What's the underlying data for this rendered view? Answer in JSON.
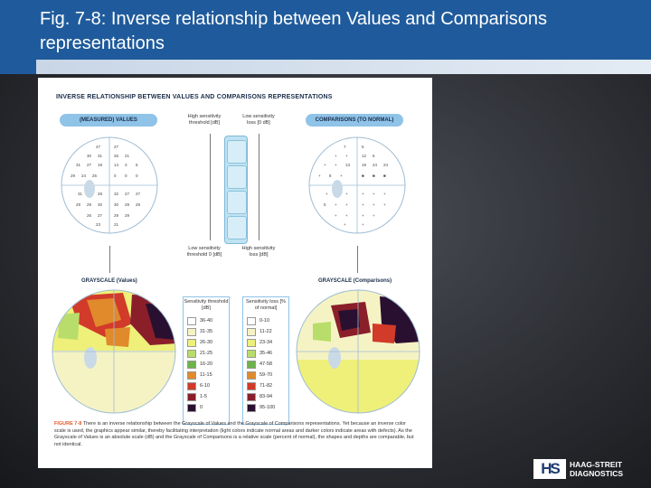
{
  "slide": {
    "title": "Fig. 7-8: Inverse relationship between Values and Comparisons representations"
  },
  "figure": {
    "heading": "INVERSE RELATIONSHIP BETWEEN VALUES AND COMPARISONS REPRESENTATIONS",
    "left_pill": "(MEASURED) VALUES",
    "right_pill": "COMPARISONS (TO NORMAL)",
    "top_left_note": "High sensitivity threshold [dB]",
    "top_right_note": "Low sensitivity loss [0 dB]",
    "bottom_left_note": "Low sensitivity threshold 0 [dB]",
    "bottom_right_note": "High sensitivity loss [dB]",
    "grayscale_values": "GRAYSCALE (Values)",
    "grayscale_comparisons": "GRAYSCALE (Comparisons)",
    "legend_left": {
      "title": "Sensitivity threshold [dB]",
      "rows": [
        "36-40",
        "31-35",
        "26-30",
        "21-25",
        "16-20",
        "11-15",
        "6-10",
        "1-5",
        "0"
      ]
    },
    "legend_right": {
      "title": "Sensitivity loss [% of normal]",
      "rows": [
        "0-10",
        "11-22",
        "23-34",
        "35-46",
        "47-58",
        "59-70",
        "71-82",
        "83-94",
        "95-100"
      ]
    },
    "legend_colors": [
      "#ffffff",
      "#f5f3c4",
      "#eef07a",
      "#b9dd6a",
      "#6fb34a",
      "#e08a2c",
      "#d23a2a",
      "#8a1f2a",
      "#2a1030"
    ],
    "caption_label": "FIGURE 7-8",
    "caption_text": "There is an inverse relationship between the Grayscale of Values and the Grayscale of Comparisons representations. Yet because an inverse color scale is used, the graphics appear similar, thereby facilitating interpretation (light colors indicate normal areas and darker colors indicate areas with defects). As the Grayscale of Values is an absolute scale (dB) and the Grayscale of Comparisons is a relative scale (percent of normal), the shapes and depths are comparable, but not identical."
  },
  "logo": {
    "mark": "HS",
    "line1": "HAAG-STREIT",
    "line2": "DIAGNOSTICS"
  }
}
